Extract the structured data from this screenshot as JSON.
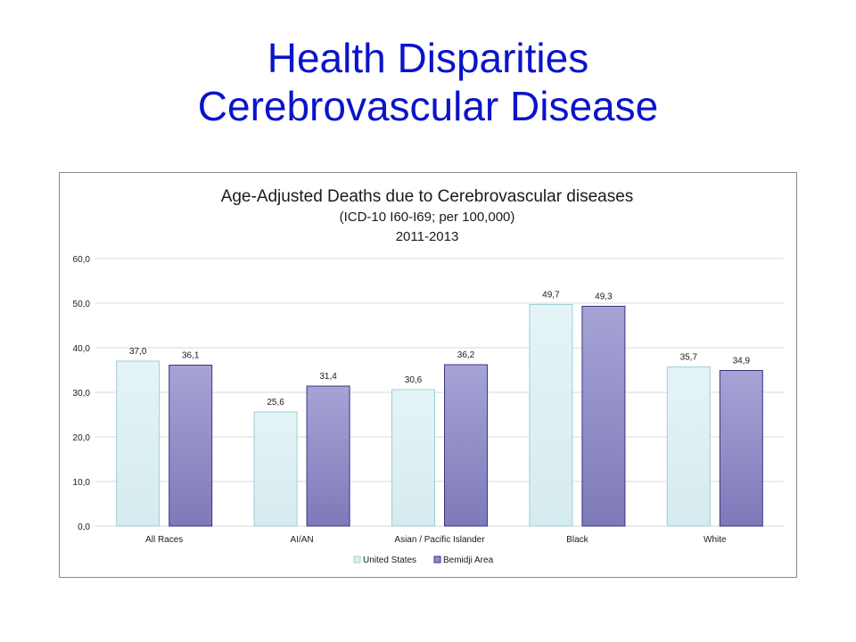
{
  "slide": {
    "title_line1": "Health Disparities",
    "title_line2": "Cerebrovascular Disease"
  },
  "chart_data": {
    "type": "bar",
    "title": "Age-Adjusted  Deaths  due to Cerebrovascular  diseases",
    "subtitle": "(ICD-10 I60-I69; per 100,000)",
    "subtitle2": "2011-2013",
    "categories": [
      "All Races",
      "AI/AN",
      "Asian / Pacific Islander",
      "Black",
      "White"
    ],
    "series": [
      {
        "name": "United States",
        "values": [
          37.0,
          25.6,
          30.6,
          49.7,
          35.7
        ],
        "labels": [
          "37,0",
          "25,6",
          "30,6",
          "49,7",
          "35,7"
        ],
        "color": "#dceff2",
        "stroke": "#9ccfd6"
      },
      {
        "name": "Bemidji Area",
        "values": [
          36.1,
          31.4,
          36.2,
          49.3,
          34.9
        ],
        "labels": [
          "36,1",
          "31,4",
          "36,2",
          "49,3",
          "34,9"
        ],
        "color": "#8e8bc4",
        "stroke": "#3a3680"
      }
    ],
    "ylim": [
      0,
      60
    ],
    "yticks": [
      0,
      10,
      20,
      30,
      40,
      50,
      60
    ],
    "ytick_labels": [
      "0,0",
      "10,0",
      "20,0",
      "30,0",
      "40,0",
      "50,0",
      "60,0"
    ],
    "grid": true,
    "legend_position": "bottom"
  }
}
